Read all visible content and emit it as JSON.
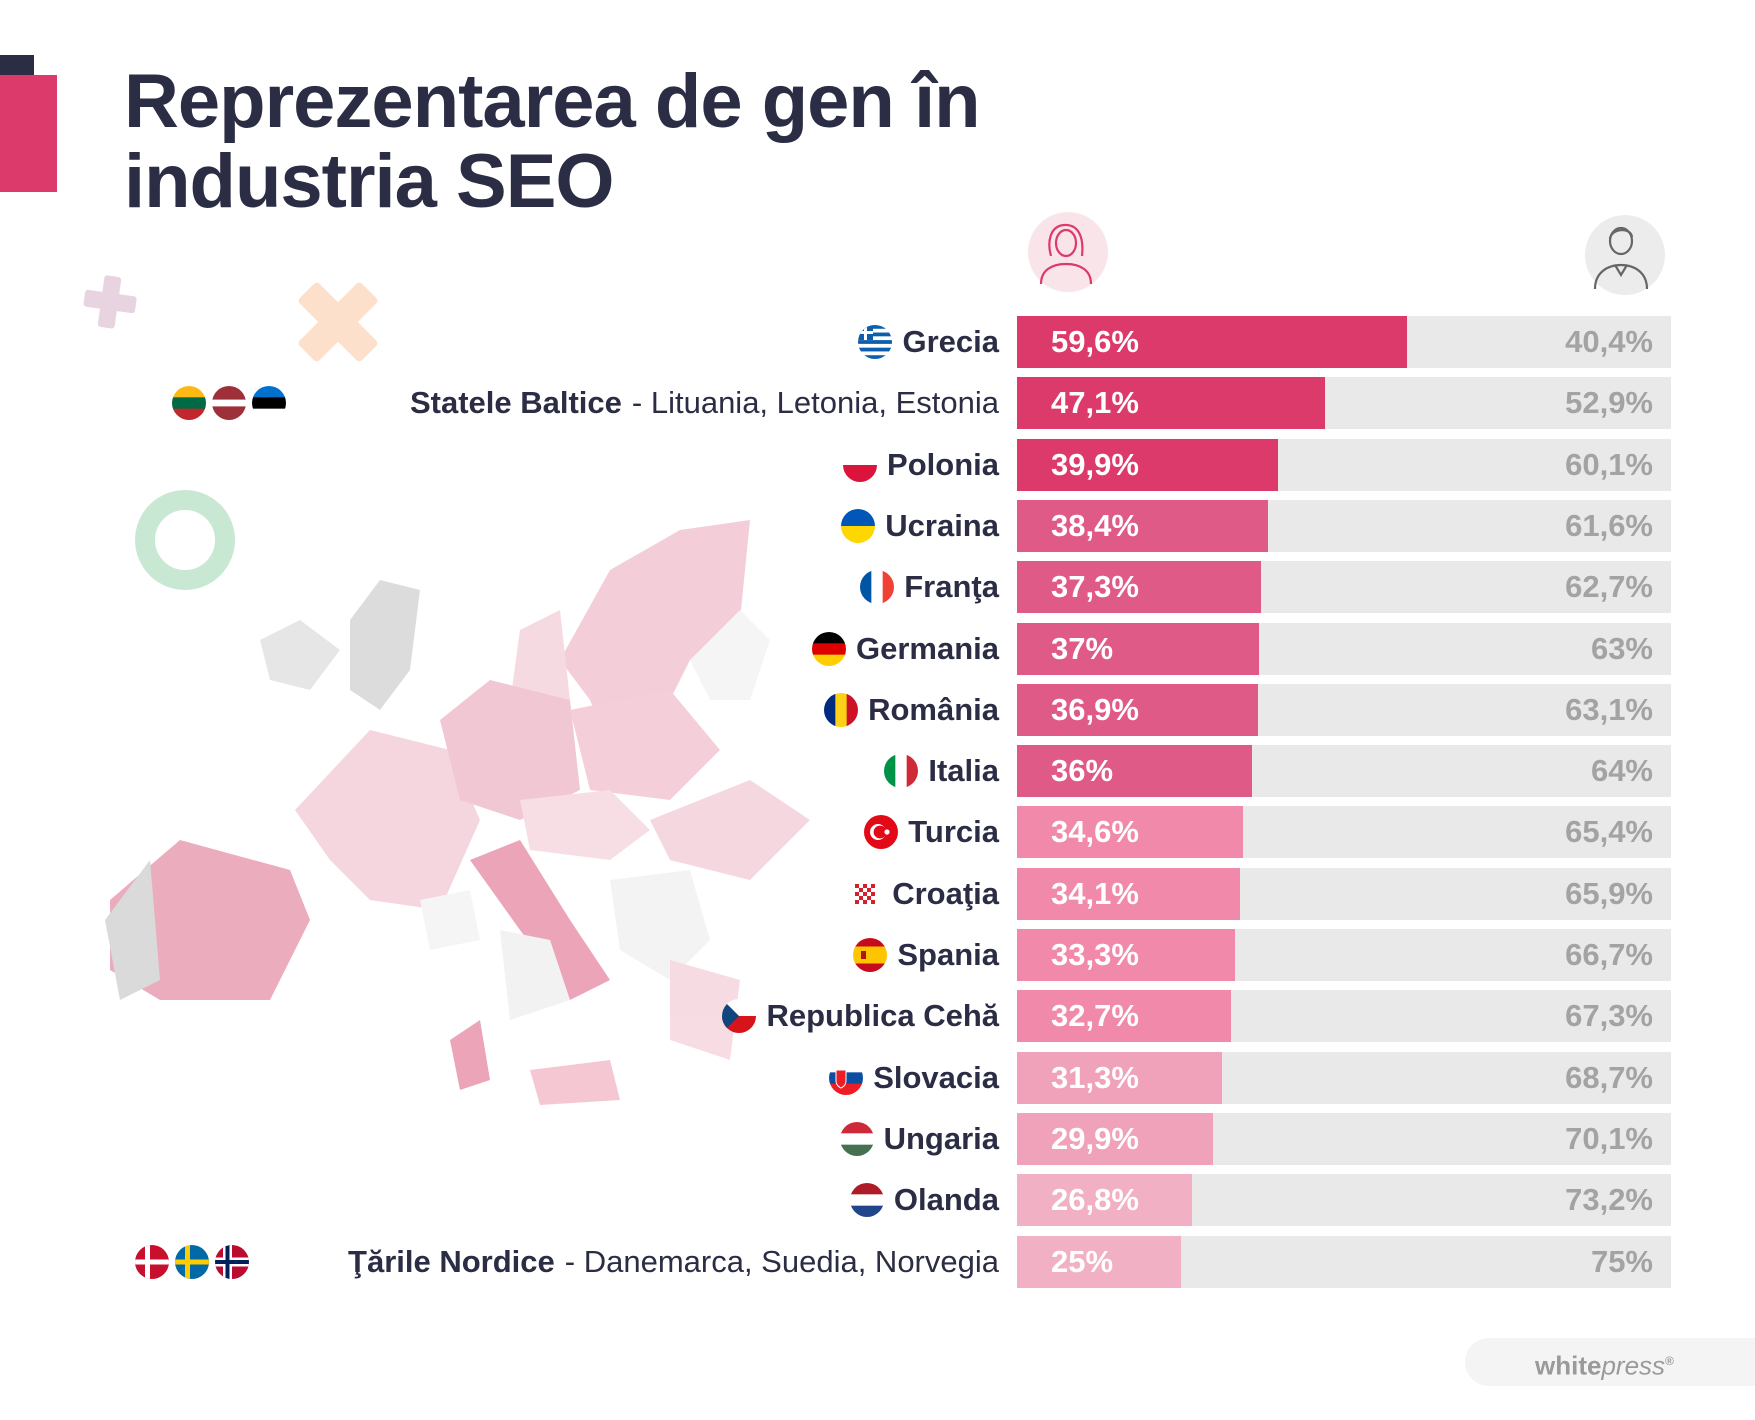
{
  "title": {
    "line1": "Reprezentarea de gen în",
    "line2": "industria SEO"
  },
  "icons": {
    "female": "woman-avatar-icon",
    "male": "man-avatar-icon"
  },
  "colors": {
    "accent": "#db3a6a",
    "text_dark": "#2b2d44",
    "track": "#e9e9e9",
    "male_text": "#a3a3a3"
  },
  "chart_data": {
    "type": "bar",
    "stacked": true,
    "orientation": "horizontal",
    "title": "Reprezentarea de gen în industria SEO",
    "categories": [
      "Grecia",
      "Statele Baltice",
      "Polonia",
      "Ucraina",
      "Franţa",
      "Germania",
      "România",
      "Italia",
      "Turcia",
      "Croaţia",
      "Spania",
      "Republica Cehă",
      "Slovacia",
      "Ungaria",
      "Olanda",
      "Ţările Nordice"
    ],
    "series": [
      {
        "name": "Femei",
        "values": [
          59.6,
          47.1,
          39.9,
          38.4,
          37.3,
          37,
          36.9,
          36,
          34.6,
          34.1,
          33.3,
          32.7,
          31.3,
          29.9,
          26.8,
          25
        ]
      },
      {
        "name": "Bărbați",
        "values": [
          40.4,
          52.9,
          60.1,
          61.6,
          62.7,
          63,
          63.1,
          64,
          65.4,
          65.9,
          66.7,
          67.3,
          68.7,
          70.1,
          73.2,
          75
        ]
      }
    ],
    "xlim": [
      0,
      100
    ],
    "rows": [
      {
        "name": "Grecia",
        "female": 59.6,
        "female_label": "59,6%",
        "male": 40.4,
        "male_label": "40,4%",
        "color": "#db3a6a",
        "flags": [
          "greece-flag-icon"
        ]
      },
      {
        "name": "Statele Baltice",
        "detail": "- Lituania, Letonia, Estonia",
        "female": 47.1,
        "female_label": "47,1%",
        "male": 52.9,
        "male_label": "52,9%",
        "color": "#db3a6a",
        "flags": [
          "lithuania-flag-icon",
          "latvia-flag-icon",
          "estonia-flag-icon"
        ]
      },
      {
        "name": "Polonia",
        "female": 39.9,
        "female_label": "39,9%",
        "male": 60.1,
        "male_label": "60,1%",
        "color": "#db3a6a",
        "flags": [
          "poland-flag-icon"
        ]
      },
      {
        "name": "Ucraina",
        "female": 38.4,
        "female_label": "38,4%",
        "male": 61.6,
        "male_label": "61,6%",
        "color": "#df5a87",
        "flags": [
          "ukraine-flag-icon"
        ]
      },
      {
        "name": "Franţa",
        "female": 37.3,
        "female_label": "37,3%",
        "male": 62.7,
        "male_label": "62,7%",
        "color": "#df5a87",
        "flags": [
          "france-flag-icon"
        ]
      },
      {
        "name": "Germania",
        "female": 37,
        "female_label": "37%",
        "male": 63,
        "male_label": "63%",
        "color": "#df5a87",
        "flags": [
          "germany-flag-icon"
        ]
      },
      {
        "name": "România",
        "female": 36.9,
        "female_label": "36,9%",
        "male": 63.1,
        "male_label": "63,1%",
        "color": "#df5a87",
        "flags": [
          "romania-flag-icon"
        ]
      },
      {
        "name": "Italia",
        "female": 36,
        "female_label": "36%",
        "male": 64,
        "male_label": "64%",
        "color": "#df5a87",
        "flags": [
          "italy-flag-icon"
        ]
      },
      {
        "name": "Turcia",
        "female": 34.6,
        "female_label": "34,6%",
        "male": 65.4,
        "male_label": "65,4%",
        "color": "#f18aaa",
        "flags": [
          "turkey-flag-icon"
        ]
      },
      {
        "name": "Croaţia",
        "female": 34.1,
        "female_label": "34,1%",
        "male": 65.9,
        "male_label": "65,9%",
        "color": "#f18aaa",
        "flags": [
          "croatia-flag-icon"
        ]
      },
      {
        "name": "Spania",
        "female": 33.3,
        "female_label": "33,3%",
        "male": 66.7,
        "male_label": "66,7%",
        "color": "#f18aaa",
        "flags": [
          "spain-flag-icon"
        ]
      },
      {
        "name": "Republica Cehă",
        "female": 32.7,
        "female_label": "32,7%",
        "male": 67.3,
        "male_label": "67,3%",
        "color": "#f18aaa",
        "flags": [
          "czech-flag-icon"
        ]
      },
      {
        "name": "Slovacia",
        "female": 31.3,
        "female_label": "31,3%",
        "male": 68.7,
        "male_label": "68,7%",
        "color": "#efa2ba",
        "flags": [
          "slovakia-flag-icon"
        ]
      },
      {
        "name": "Ungaria",
        "female": 29.9,
        "female_label": "29,9%",
        "male": 70.1,
        "male_label": "70,1%",
        "color": "#efa2ba",
        "flags": [
          "hungary-flag-icon"
        ]
      },
      {
        "name": "Olanda",
        "female": 26.8,
        "female_label": "26,8%",
        "male": 73.2,
        "male_label": "73,2%",
        "color": "#f2b0c4",
        "flags": [
          "netherlands-flag-icon"
        ]
      },
      {
        "name": "Ţările Nordice",
        "detail": "- Danemarca, Suedia, Norvegia",
        "female": 25,
        "female_label": "25%",
        "male": 75,
        "male_label": "75%",
        "color": "#f2b0c4",
        "flags": [
          "denmark-flag-icon",
          "sweden-flag-icon",
          "norway-flag-icon"
        ]
      }
    ]
  },
  "brand": {
    "bold": "white",
    "italic": "press",
    "mark": "®"
  }
}
